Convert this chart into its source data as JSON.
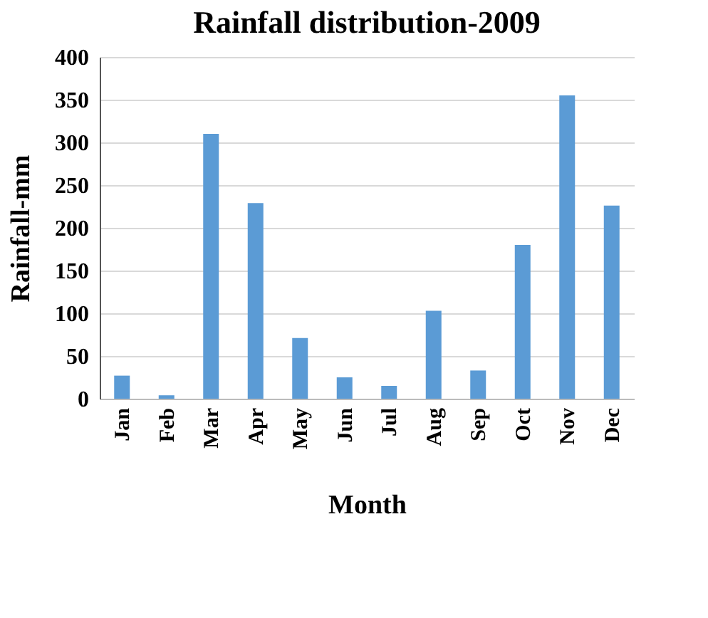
{
  "chart_data": {
    "type": "bar",
    "title": "Rainfall distribution-2009",
    "xlabel": "Month",
    "ylabel": "Rainfall-mm",
    "categories": [
      "Jan",
      "Feb",
      "Mar",
      "Apr",
      "May",
      "Jun",
      "Jul",
      "Aug",
      "Sep",
      "Oct",
      "Nov",
      "Dec"
    ],
    "values": [
      27,
      4,
      310,
      229,
      71,
      25,
      15,
      103,
      33,
      180,
      355,
      226
    ],
    "color": "#5b9bd5",
    "ylim": [
      0,
      400
    ],
    "yticks": [
      0,
      50,
      100,
      150,
      200,
      250,
      300,
      350,
      400
    ],
    "grid": "y"
  }
}
